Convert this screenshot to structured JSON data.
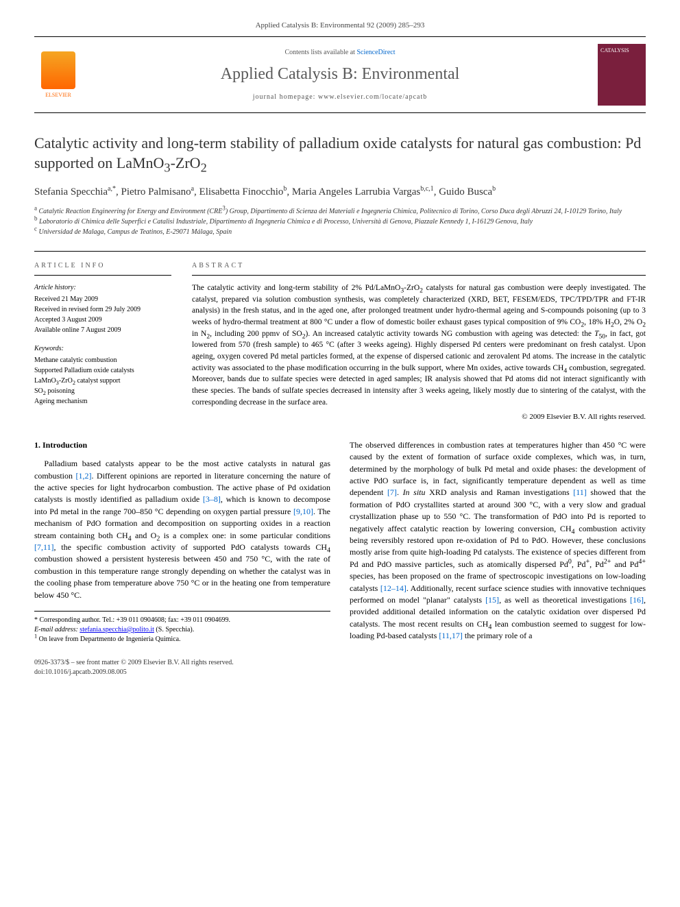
{
  "running_head": "Applied Catalysis B: Environmental 92 (2009) 285–293",
  "masthead": {
    "contents_prefix": "Contents lists available at ",
    "contents_link": "ScienceDirect",
    "journal_title": "Applied Catalysis B: Environmental",
    "homepage_prefix": "journal homepage: ",
    "homepage_url": "www.elsevier.com/locate/apcatb",
    "publisher": "ELSEVIER",
    "cover_label": "CATALYSIS"
  },
  "article": {
    "title_html": "Catalytic activity and long-term stability of palladium oxide catalysts for natural gas combustion: Pd supported on LaMnO<sub>3</sub>-ZrO<sub>2</sub>",
    "authors_html": "Stefania Specchia<sup>a,*</sup>, Pietro Palmisano<sup>a</sup>, Elisabetta Finocchio<sup>b</sup>, Maria Angeles Larrubia Vargas<sup>b,c,1</sup>, Guido Busca<sup>b</sup>",
    "affiliations": [
      "<sup>a</sup> Catalytic Reaction Engineering for Energy and Environment (CRE<sup>3</sup>) Group, Dipartimento di Scienza dei Materiali e Ingegneria Chimica, Politecnico di Torino, Corso Duca degli Abruzzi 24, I-10129 Torino, Italy",
      "<sup>b</sup> Laboratorio di Chimica delle Superfici e Catalisi Industriale, Dipartimento di Ingegneria Chimica e di Processo, Università di Genova, Piazzale Kennedy 1, I-16129 Genova, Italy",
      "<sup>c</sup> Universidad de Malaga, Campus de Teatinos, E-29071 Málaga, Spain"
    ]
  },
  "article_info": {
    "head": "ARTICLE INFO",
    "history_label": "Article history:",
    "history": [
      "Received 21 May 2009",
      "Received in revised form 29 July 2009",
      "Accepted 3 August 2009",
      "Available online 7 August 2009"
    ],
    "keywords_label": "Keywords:",
    "keywords": [
      "Methane catalytic combustion",
      "Supported Palladium oxide catalysts",
      "LaMnO<sub>3</sub>-ZrO<sub>2</sub> catalyst support",
      "SO<sub>2</sub> poisoning",
      "Ageing mechanism"
    ]
  },
  "abstract": {
    "head": "ABSTRACT",
    "text_html": "The catalytic activity and long-term stability of 2% Pd/LaMnO<sub>3</sub>-ZrO<sub>2</sub> catalysts for natural gas combustion were deeply investigated. The catalyst, prepared via solution combustion synthesis, was completely characterized (XRD, BET, FESEM/EDS, TPC/TPD/TPR and FT-IR analysis) in the fresh status, and in the aged one, after prolonged treatment under hydro-thermal ageing and S-compounds poisoning (up to 3 weeks of hydro-thermal treatment at 800 °C under a flow of domestic boiler exhaust gases typical composition of 9% CO<sub>2</sub>, 18% H<sub>2</sub>O, 2% O<sub>2</sub> in N<sub>2</sub>, including 200 ppmv of SO<sub>2</sub>). An increased catalytic activity towards NG combustion with ageing was detected: the <i>T</i><sub>50</sub>, in fact, got lowered from 570 (fresh sample) to 465 °C (after 3 weeks ageing). Highly dispersed Pd centers were predominant on fresh catalyst. Upon ageing, oxygen covered Pd metal particles formed, at the expense of dispersed cationic and zerovalent Pd atoms. The increase in the catalytic activity was associated to the phase modification occurring in the bulk support, where Mn oxides, active towards CH<sub>4</sub> combustion, segregated. Moreover, bands due to sulfate species were detected in aged samples; IR analysis showed that Pd atoms did not interact significantly with these species. The bands of sulfate species decreased in intensity after 3 weeks ageing, likely mostly due to sintering of the catalyst, with the corresponding decrease in the surface area.",
    "copyright": "© 2009 Elsevier B.V. All rights reserved."
  },
  "section1": {
    "head": "1. Introduction",
    "para1_html": "Palladium based catalysts appear to be the most active catalysts in natural gas combustion <span class=\"ref\">[1,2]</span>. Different opinions are reported in literature concerning the nature of the active species for light hydrocarbon combustion. The active phase of Pd oxidation catalysts is mostly identified as palladium oxide <span class=\"ref\">[3–8]</span>, which is known to decompose into Pd metal in the range 700–850 °C depending on oxygen partial pressure <span class=\"ref\">[9,10]</span>. The mechanism of PdO formation and decomposition on supporting oxides in a reaction stream containing both CH<sub>4</sub> and O<sub>2</sub> is a complex one: in some particular conditions <span class=\"ref\">[7,11]</span>, the specific combustion activity of supported PdO catalysts towards CH<sub>4</sub> combustion showed a persistent hysteresis between 450 and 750 °C, with the rate of combustion in this temperature range strongly depending on whether the catalyst was in the cooling phase from temperature above 750 °C or in the heating one from temperature below 450 °C.",
    "para2_html": "The observed differences in combustion rates at temperatures higher than 450 °C were caused by the extent of formation of surface oxide complexes, which was, in turn, determined by the morphology of bulk Pd metal and oxide phases: the development of active PdO surface is, in fact, significantly temperature dependent as well as time dependent <span class=\"ref\">[7]</span>. <i>In situ</i> XRD analysis and Raman investigations <span class=\"ref\">[11]</span> showed that the formation of PdO crystallites started at around 300 °C, with a very slow and gradual crystallization phase up to 550 °C. The transformation of PdO into Pd is reported to negatively affect catalytic reaction by lowering conversion, CH<sub>4</sub> combustion activity being reversibly restored upon re-oxidation of Pd to PdO. However, these conclusions mostly arise from quite high-loading Pd catalysts. The existence of species different from Pd and PdO massive particles, such as atomically dispersed Pd<sup>0</sup>, Pd<sup>+</sup>, Pd<sup>2+</sup> and Pd<sup>4+</sup> species, has been proposed on the frame of spectroscopic investigations on low-loading catalysts <span class=\"ref\">[12–14]</span>. Additionally, recent surface science studies with innovative techniques performed on model \"planar\" catalysts <span class=\"ref\">[15]</span>, as well as theoretical investigations <span class=\"ref\">[16]</span>, provided additional detailed information on the catalytic oxidation over dispersed Pd catalysts. The most recent results on CH<sub>4</sub> lean combustion seemed to suggest for low-loading Pd-based catalysts <span class=\"ref\">[11,17]</span> the primary role of a"
  },
  "footnotes": {
    "corr": "* Corresponding author. Tel.: +39 011 0904608; fax: +39 011 0904699.",
    "email_label": "E-mail address:",
    "email": "stefania.specchia@polito.it",
    "email_who": "(S. Specchia).",
    "note1": "<sup>1</sup> On leave from Departmento de Ingenieria Quimica."
  },
  "footer": {
    "issn_line": "0926-3373/$ – see front matter © 2009 Elsevier B.V. All rights reserved.",
    "doi": "doi:10.1016/j.apcatb.2009.08.005"
  },
  "colors": {
    "link": "#0066cc",
    "elsevier_orange": "#ff6600",
    "cover_bg": "#7a1f3d"
  }
}
